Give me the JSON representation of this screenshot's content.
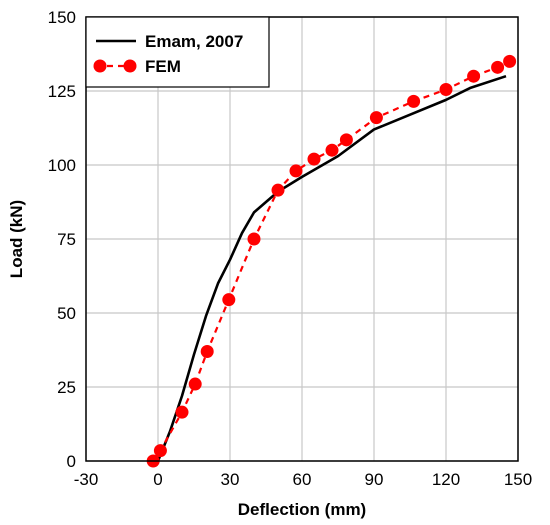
{
  "chart_data": {
    "type": "line",
    "title": "",
    "xlabel": "Deflection (mm)",
    "ylabel": "Load (kN)",
    "xlim": [
      -30,
      150
    ],
    "ylim": [
      0,
      150
    ],
    "x_ticks": [
      "-30",
      "0",
      "30",
      "60",
      "90",
      "120",
      "150"
    ],
    "y_ticks": [
      "0",
      "25",
      "50",
      "75",
      "100",
      "125",
      "150"
    ],
    "grid": true,
    "legend_position": "top-left",
    "series": [
      {
        "name": "Emam, 2007",
        "style": "solid-line",
        "color": "#000000",
        "points": [
          [
            0,
            0
          ],
          [
            5,
            10
          ],
          [
            10,
            22
          ],
          [
            15,
            36
          ],
          [
            20,
            49
          ],
          [
            25,
            60
          ],
          [
            30,
            68
          ],
          [
            35,
            77
          ],
          [
            40,
            84
          ],
          [
            50,
            91
          ],
          [
            60,
            96
          ],
          [
            75,
            103
          ],
          [
            90,
            112
          ],
          [
            105,
            117
          ],
          [
            120,
            122
          ],
          [
            130,
            126
          ],
          [
            145,
            130
          ]
        ]
      },
      {
        "name": "FEM",
        "style": "dashed-line-circle-markers",
        "color": "#ff0000",
        "points": [
          [
            -2,
            0
          ],
          [
            1,
            3.5
          ],
          [
            10,
            16.5
          ],
          [
            15.5,
            26
          ],
          [
            20.5,
            37
          ],
          [
            29.5,
            54.5
          ],
          [
            40,
            75
          ],
          [
            50,
            91.5
          ],
          [
            57.5,
            98
          ],
          [
            65,
            102
          ],
          [
            72.5,
            105
          ],
          [
            78.5,
            108.5
          ],
          [
            91,
            116
          ],
          [
            106.5,
            121.5
          ],
          [
            120,
            125.5
          ],
          [
            131.5,
            130
          ],
          [
            141.5,
            133
          ],
          [
            146.5,
            135
          ]
        ]
      }
    ]
  }
}
